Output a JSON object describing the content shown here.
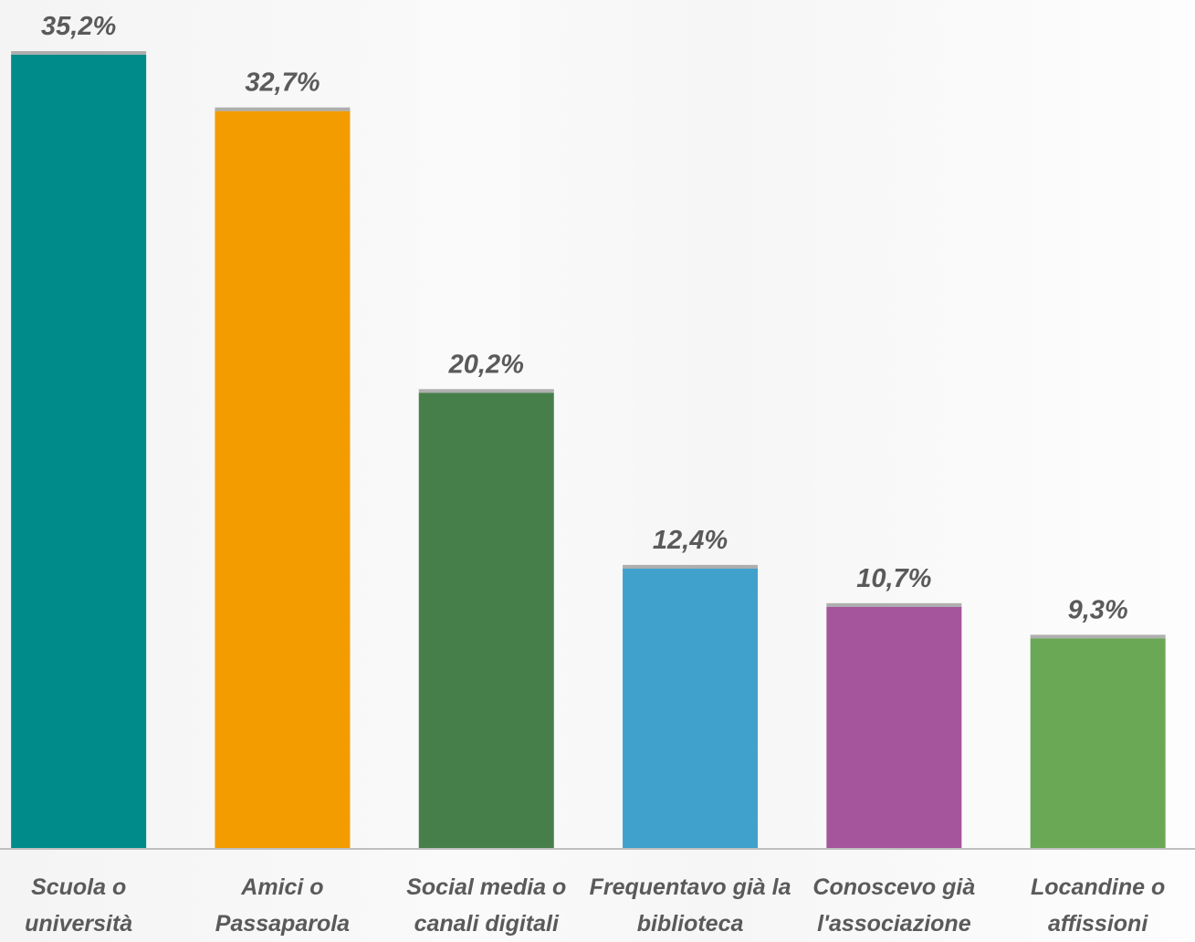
{
  "chart_data": {
    "type": "bar",
    "categories": [
      "Scuola o università",
      "Amici o Passaparola",
      "Social media o canali digitali",
      "Frequentavo già la biblioteca",
      "Conoscevo già l'associazione",
      "Locandine o affissioni"
    ],
    "values": [
      35.2,
      32.7,
      20.2,
      12.4,
      10.7,
      9.3
    ],
    "value_labels": [
      "35,2%",
      "32,7%",
      "20,2%",
      "12,4%",
      "10,7%",
      "9,3%"
    ],
    "colors": [
      "#008b8b",
      "#f29c00",
      "#467f4a",
      "#3fa1cc",
      "#a4559c",
      "#6aa855"
    ]
  }
}
